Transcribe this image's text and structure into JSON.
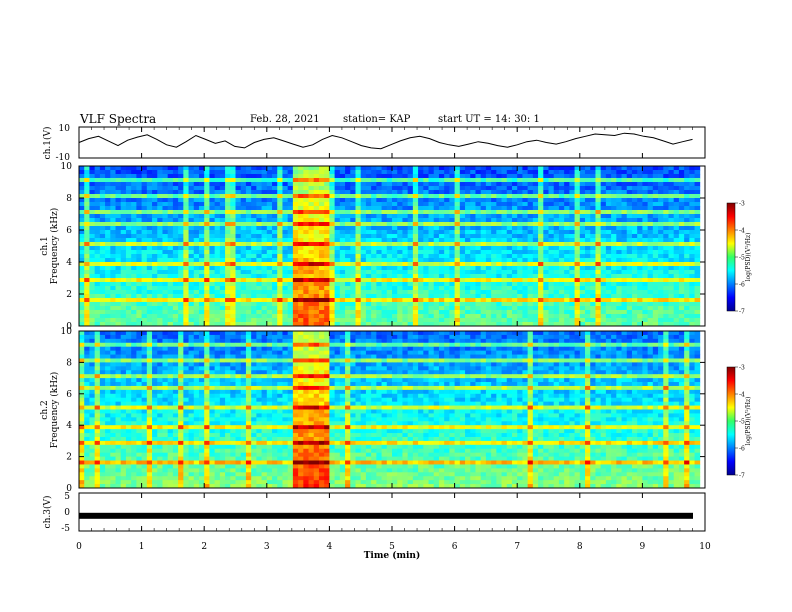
{
  "header": {
    "title": "VLF Spectra",
    "date": "Feb. 28, 2021",
    "station": "station= KAP",
    "start": "start  UT =   14: 30: 1"
  },
  "chart_data": [
    {
      "type": "line",
      "panel": "ch1-waveform",
      "ylabel": "ch.1(V)",
      "ylim": [
        -10,
        10
      ],
      "yticks": [
        "10",
        "-10"
      ],
      "xlim": [
        0,
        10
      ],
      "series": [
        {
          "values": [
            0.0,
            2.5,
            4.0,
            1.0,
            -2.0,
            1.5,
            3.5,
            5.0,
            2.0,
            -1.5,
            -3.0,
            0.5,
            4.5,
            2.0,
            -0.5,
            1.0,
            -2.5,
            -3.5,
            0.0,
            2.0,
            3.0,
            1.0,
            -1.0,
            -3.0,
            -1.5,
            2.0,
            4.5,
            3.0,
            0.5,
            -2.0,
            -3.5,
            -4.0,
            -1.5,
            1.0,
            3.0,
            4.0,
            2.5,
            0.0,
            -1.5,
            -2.5,
            -1.0,
            0.5,
            -0.5,
            -2.0,
            -3.0,
            -1.5,
            0.5,
            1.5,
            0.0,
            -1.0,
            0.5,
            2.5,
            4.0,
            5.5,
            5.0,
            4.5,
            6.0,
            5.5,
            4.0,
            3.0,
            1.0,
            -1.0,
            0.5,
            2.0
          ]
        }
      ]
    },
    {
      "type": "heatmap",
      "panel": "ch1-spectrogram",
      "ylabel": "Frequency (kHz)",
      "channel_label": "ch.1",
      "ylim": [
        0,
        10
      ],
      "yticks": [
        "0",
        "2",
        "4",
        "6",
        "8",
        "10"
      ],
      "xlim": [
        0,
        10
      ],
      "colorbar": {
        "label": "log(PSD)(V²/Hz)",
        "range": [
          -7,
          -3
        ],
        "ticks": [
          "-3",
          "-4",
          "-5",
          "-6",
          "-7"
        ]
      }
    },
    {
      "type": "heatmap",
      "panel": "ch2-spectrogram",
      "ylabel": "Frequency (kHz)",
      "channel_label": "ch.2",
      "ylim": [
        0,
        10
      ],
      "yticks": [
        "0",
        "2",
        "4",
        "6",
        "8",
        "10"
      ],
      "xlim": [
        0,
        10
      ],
      "colorbar": {
        "label": "log(PSD)(V²/Hz)",
        "range": [
          -7,
          -3
        ],
        "ticks": [
          "-3",
          "-4",
          "-5",
          "-6",
          "-7"
        ]
      }
    },
    {
      "type": "line",
      "panel": "ch3-waveform",
      "ylabel": "ch.3(V)",
      "ylim": [
        -5,
        5
      ],
      "yticks": [
        "5",
        "0",
        "-5"
      ],
      "xlim": [
        0,
        10
      ],
      "series": [
        {
          "values": [
            -1,
            -1
          ]
        }
      ]
    }
  ],
  "xaxis": {
    "label": "Time (min)",
    "ticks": [
      "0",
      "1",
      "2",
      "3",
      "4",
      "5",
      "6",
      "7",
      "8",
      "9",
      "10"
    ]
  }
}
